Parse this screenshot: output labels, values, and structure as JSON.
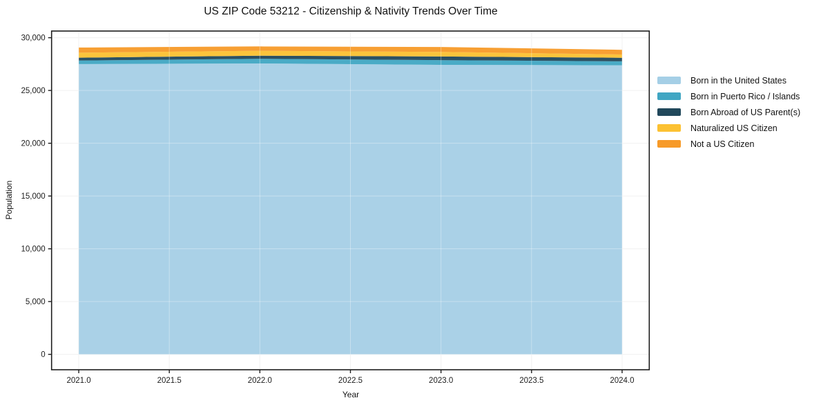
{
  "chart_data": {
    "type": "area",
    "stacked": true,
    "title": "US ZIP Code 53212 - Citizenship & Nativity Trends Over Time",
    "xlabel": "Year",
    "ylabel": "Population",
    "x": [
      2021,
      2022,
      2023,
      2024
    ],
    "series": [
      {
        "name": "Born in the United States",
        "color": "#a5cfe6",
        "values": [
          27500,
          27560,
          27430,
          27390
        ]
      },
      {
        "name": "Born in Puerto Rico / Islands",
        "color": "#40a6c3",
        "values": [
          330,
          440,
          440,
          370
        ]
      },
      {
        "name": "Born Abroad of US Parent(s)",
        "color": "#21485b",
        "values": [
          280,
          300,
          350,
          340
        ]
      },
      {
        "name": "Naturalized US Citizen",
        "color": "#fcc132",
        "values": [
          470,
          460,
          430,
          310
        ]
      },
      {
        "name": "Not a US Citizen",
        "color": "#f79a28",
        "values": [
          490,
          410,
          470,
          440
        ]
      }
    ],
    "totals": [
      29070,
      29170,
      29120,
      28850
    ],
    "xlim": [
      2020.85,
      2024.15
    ],
    "ylim": [
      -1460,
      30630
    ],
    "x_ticks": {
      "values": [
        2021,
        2021.5,
        2022,
        2022.5,
        2023,
        2023.5,
        2024
      ],
      "labels": [
        "2021.0",
        "2021.5",
        "2022.0",
        "2022.5",
        "2023.0",
        "2023.5",
        "2024.0"
      ]
    },
    "y_ticks": {
      "values": [
        0,
        5000,
        10000,
        15000,
        20000,
        25000,
        30000
      ],
      "labels": [
        "0",
        "5,000",
        "10,000",
        "15,000",
        "20,000",
        "25,000",
        "30,000"
      ]
    },
    "grid": true,
    "grid_color": "#ebebeb",
    "spine_color": "#1c1c1c",
    "legend_position": "outside-right"
  }
}
